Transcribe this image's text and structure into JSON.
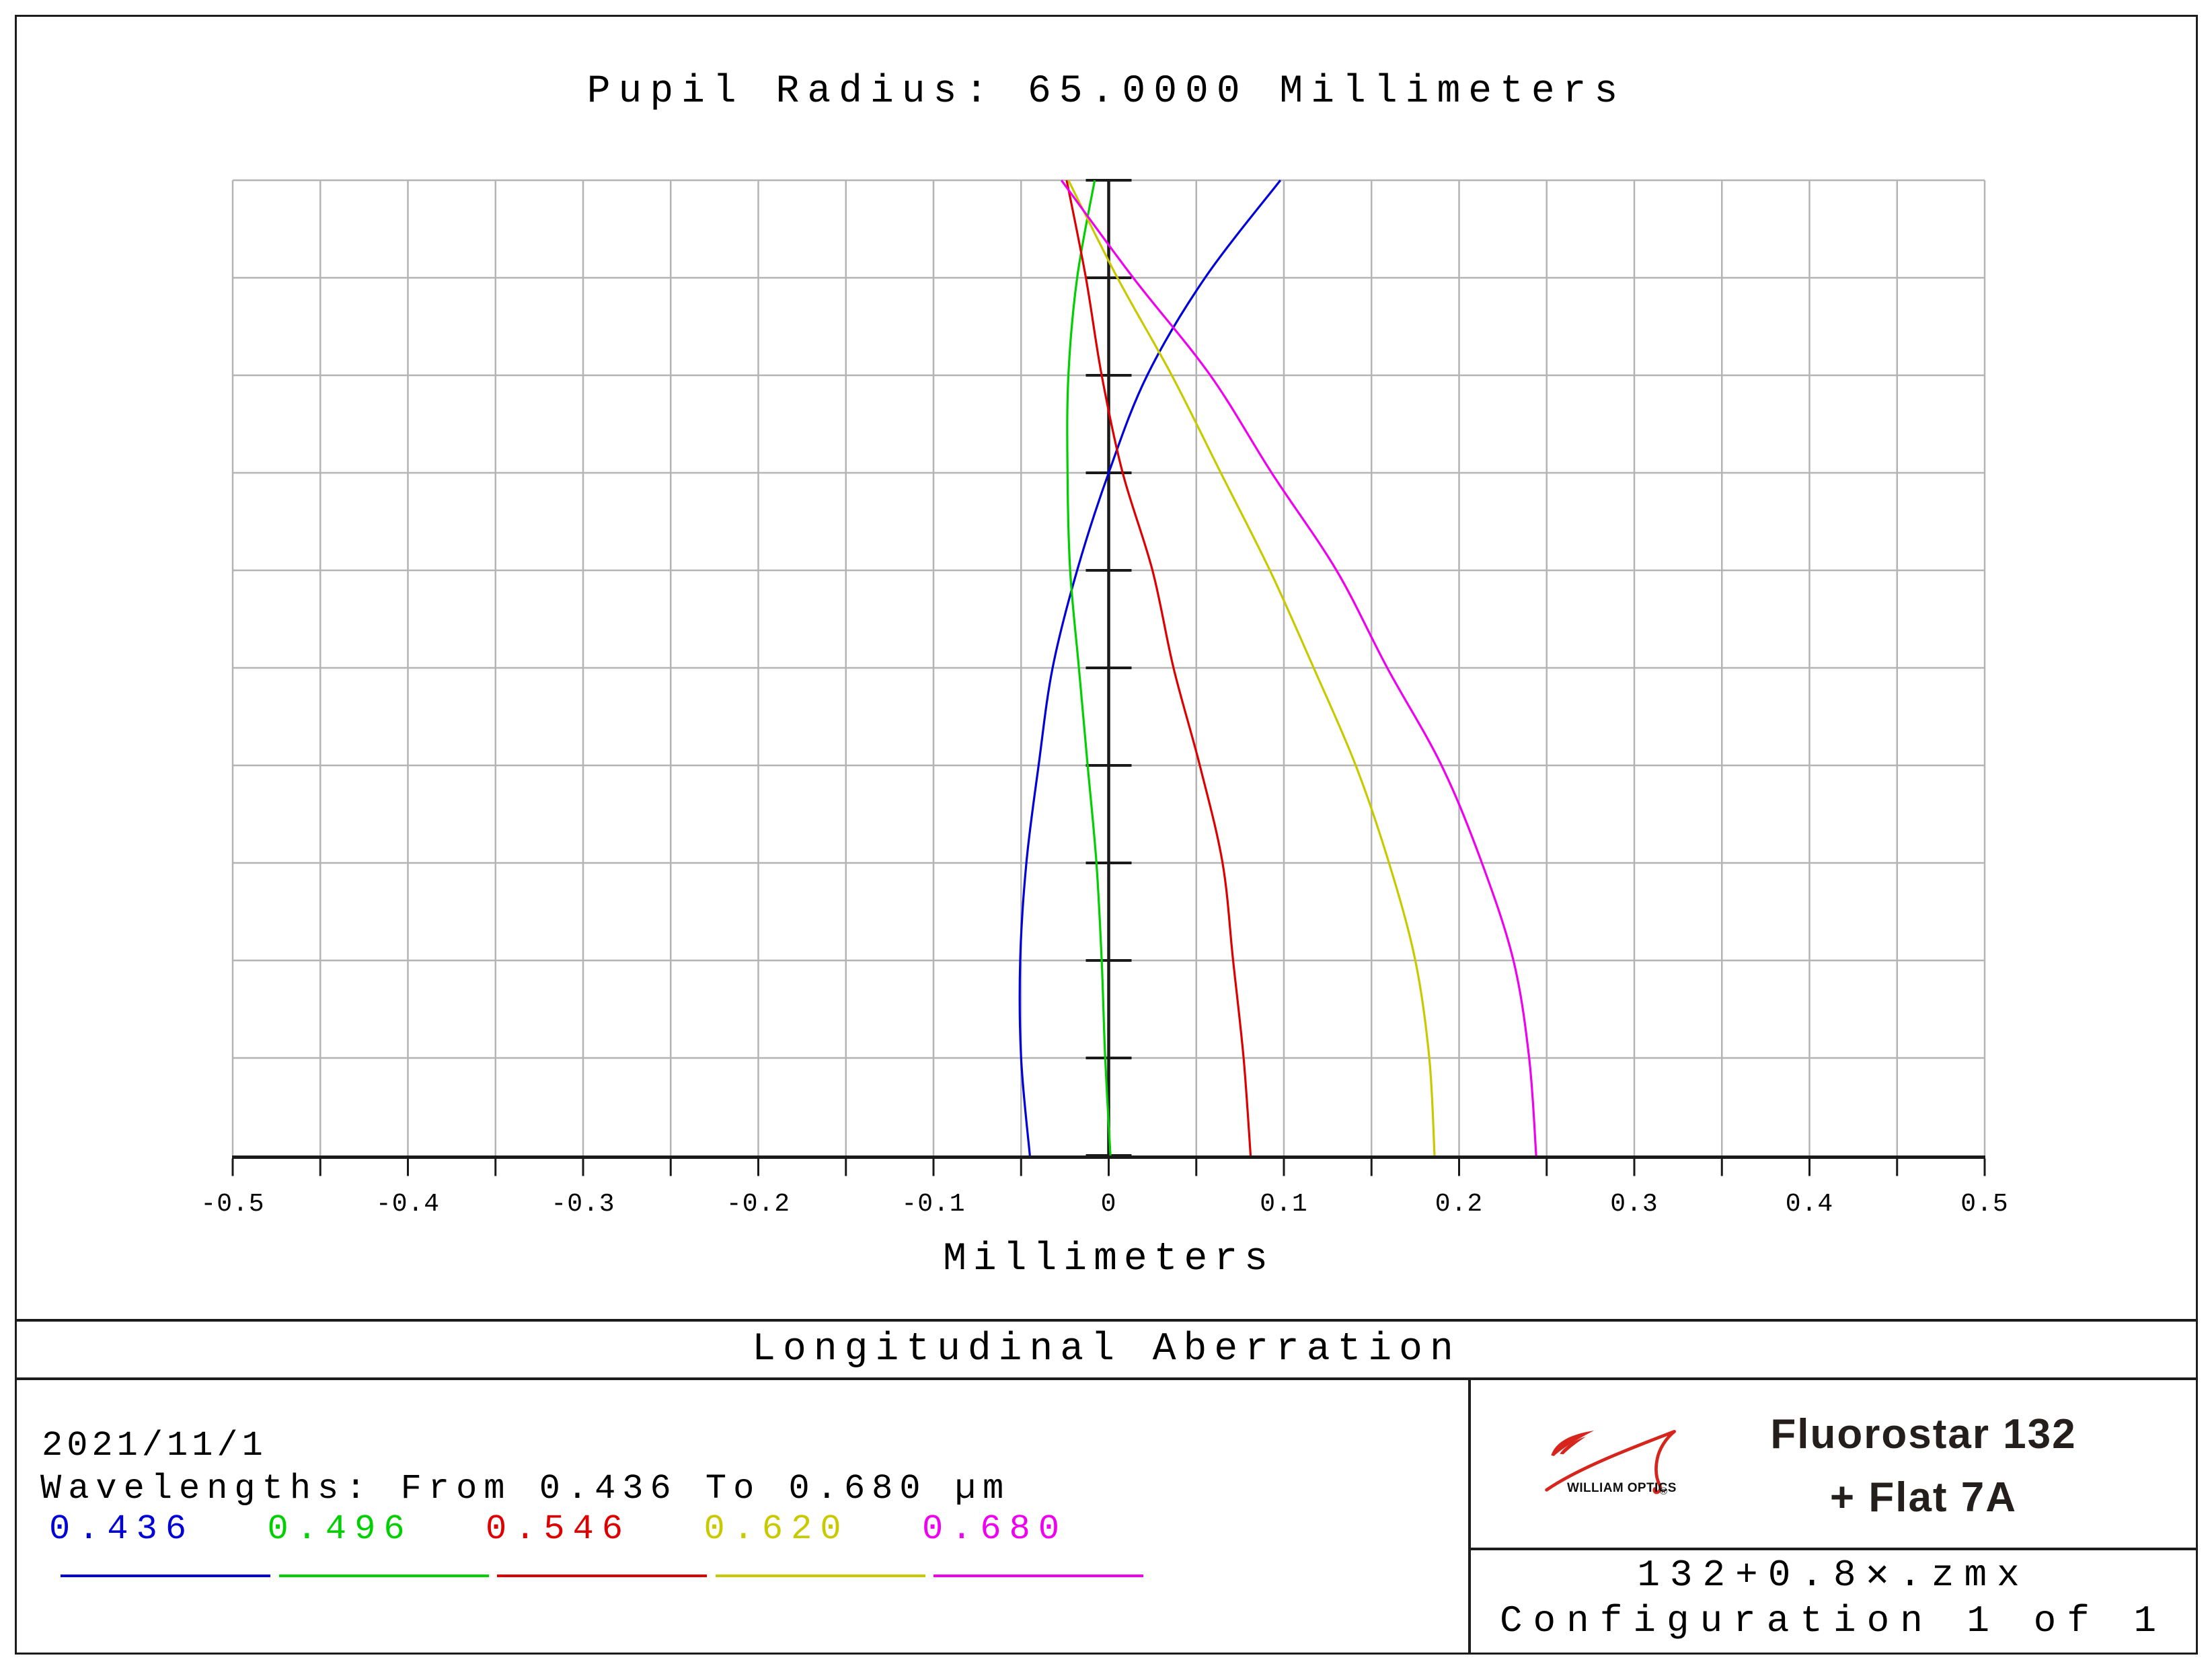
{
  "chart_data": {
    "type": "line",
    "title": "Pupil Radius: 65.0000 Millimeters",
    "xlabel": "Millimeters",
    "xlim": [
      -0.5,
      0.5
    ],
    "x_tick_labels": [
      "-0.5",
      "-0.4",
      "-0.3",
      "-0.2",
      "-0.1",
      "0",
      "0.1",
      "0.2",
      "0.3",
      "0.4",
      "0.5"
    ],
    "x_grid_step": 0.05,
    "x_tick_step": 0.05,
    "x_label_step": 0.1,
    "y_rows": 10,
    "pupil_radius_mm": 65.0,
    "grid": true,
    "legend_position": "bottom-left",
    "pupil_fractions": [
      0.0,
      0.1,
      0.2,
      0.3,
      0.4,
      0.5,
      0.6,
      0.7,
      0.8,
      0.9,
      1.0
    ],
    "series": [
      {
        "name": "0.436",
        "color": "#0000D9",
        "values": [
          -0.045,
          -0.05,
          -0.0505,
          -0.047,
          -0.04,
          -0.032,
          -0.018,
          0.0,
          0.022,
          0.055,
          0.098
        ]
      },
      {
        "name": "0.496",
        "color": "#00CF00",
        "values": [
          0.001,
          -0.002,
          -0.004,
          -0.007,
          -0.012,
          -0.017,
          -0.022,
          -0.0235,
          -0.023,
          -0.018,
          -0.008
        ]
      },
      {
        "name": "0.546",
        "color": "#DE0000",
        "values": [
          0.081,
          0.077,
          0.071,
          0.065,
          0.052,
          0.037,
          0.025,
          0.008,
          -0.004,
          -0.013,
          -0.024
        ]
      },
      {
        "name": "0.620",
        "color": "#C9C900",
        "values": [
          0.186,
          0.183,
          0.175,
          0.16,
          0.141,
          0.117,
          0.092,
          0.064,
          0.036,
          0.005,
          -0.023
        ]
      },
      {
        "name": "0.680",
        "color": "#EF00EF",
        "values": [
          0.244,
          0.24,
          0.231,
          0.213,
          0.19,
          0.159,
          0.13,
          0.093,
          0.058,
          0.014,
          -0.027
        ]
      }
    ]
  },
  "section": {
    "title": "Longitudinal Aberration"
  },
  "footer": {
    "date": "2021/11/1",
    "wavelengths_line": "Wavelengths: From 0.436 To 0.680 µm"
  },
  "brand": {
    "logo_icon": "william-optics-swoosh",
    "logo_color": "#D6251D",
    "logo_text": "WILLIAM OPTICS",
    "registered": "®",
    "line1": "Fluorostar 132",
    "line2": "+ Flat 7A",
    "file": "132+0.8✕.zmx",
    "config": "Configuration 1 of 1"
  },
  "colors": {
    "grid": "#B4B4B4",
    "axis": "#1A1A1A",
    "text": "#000000",
    "background": "#FFFFFF"
  }
}
